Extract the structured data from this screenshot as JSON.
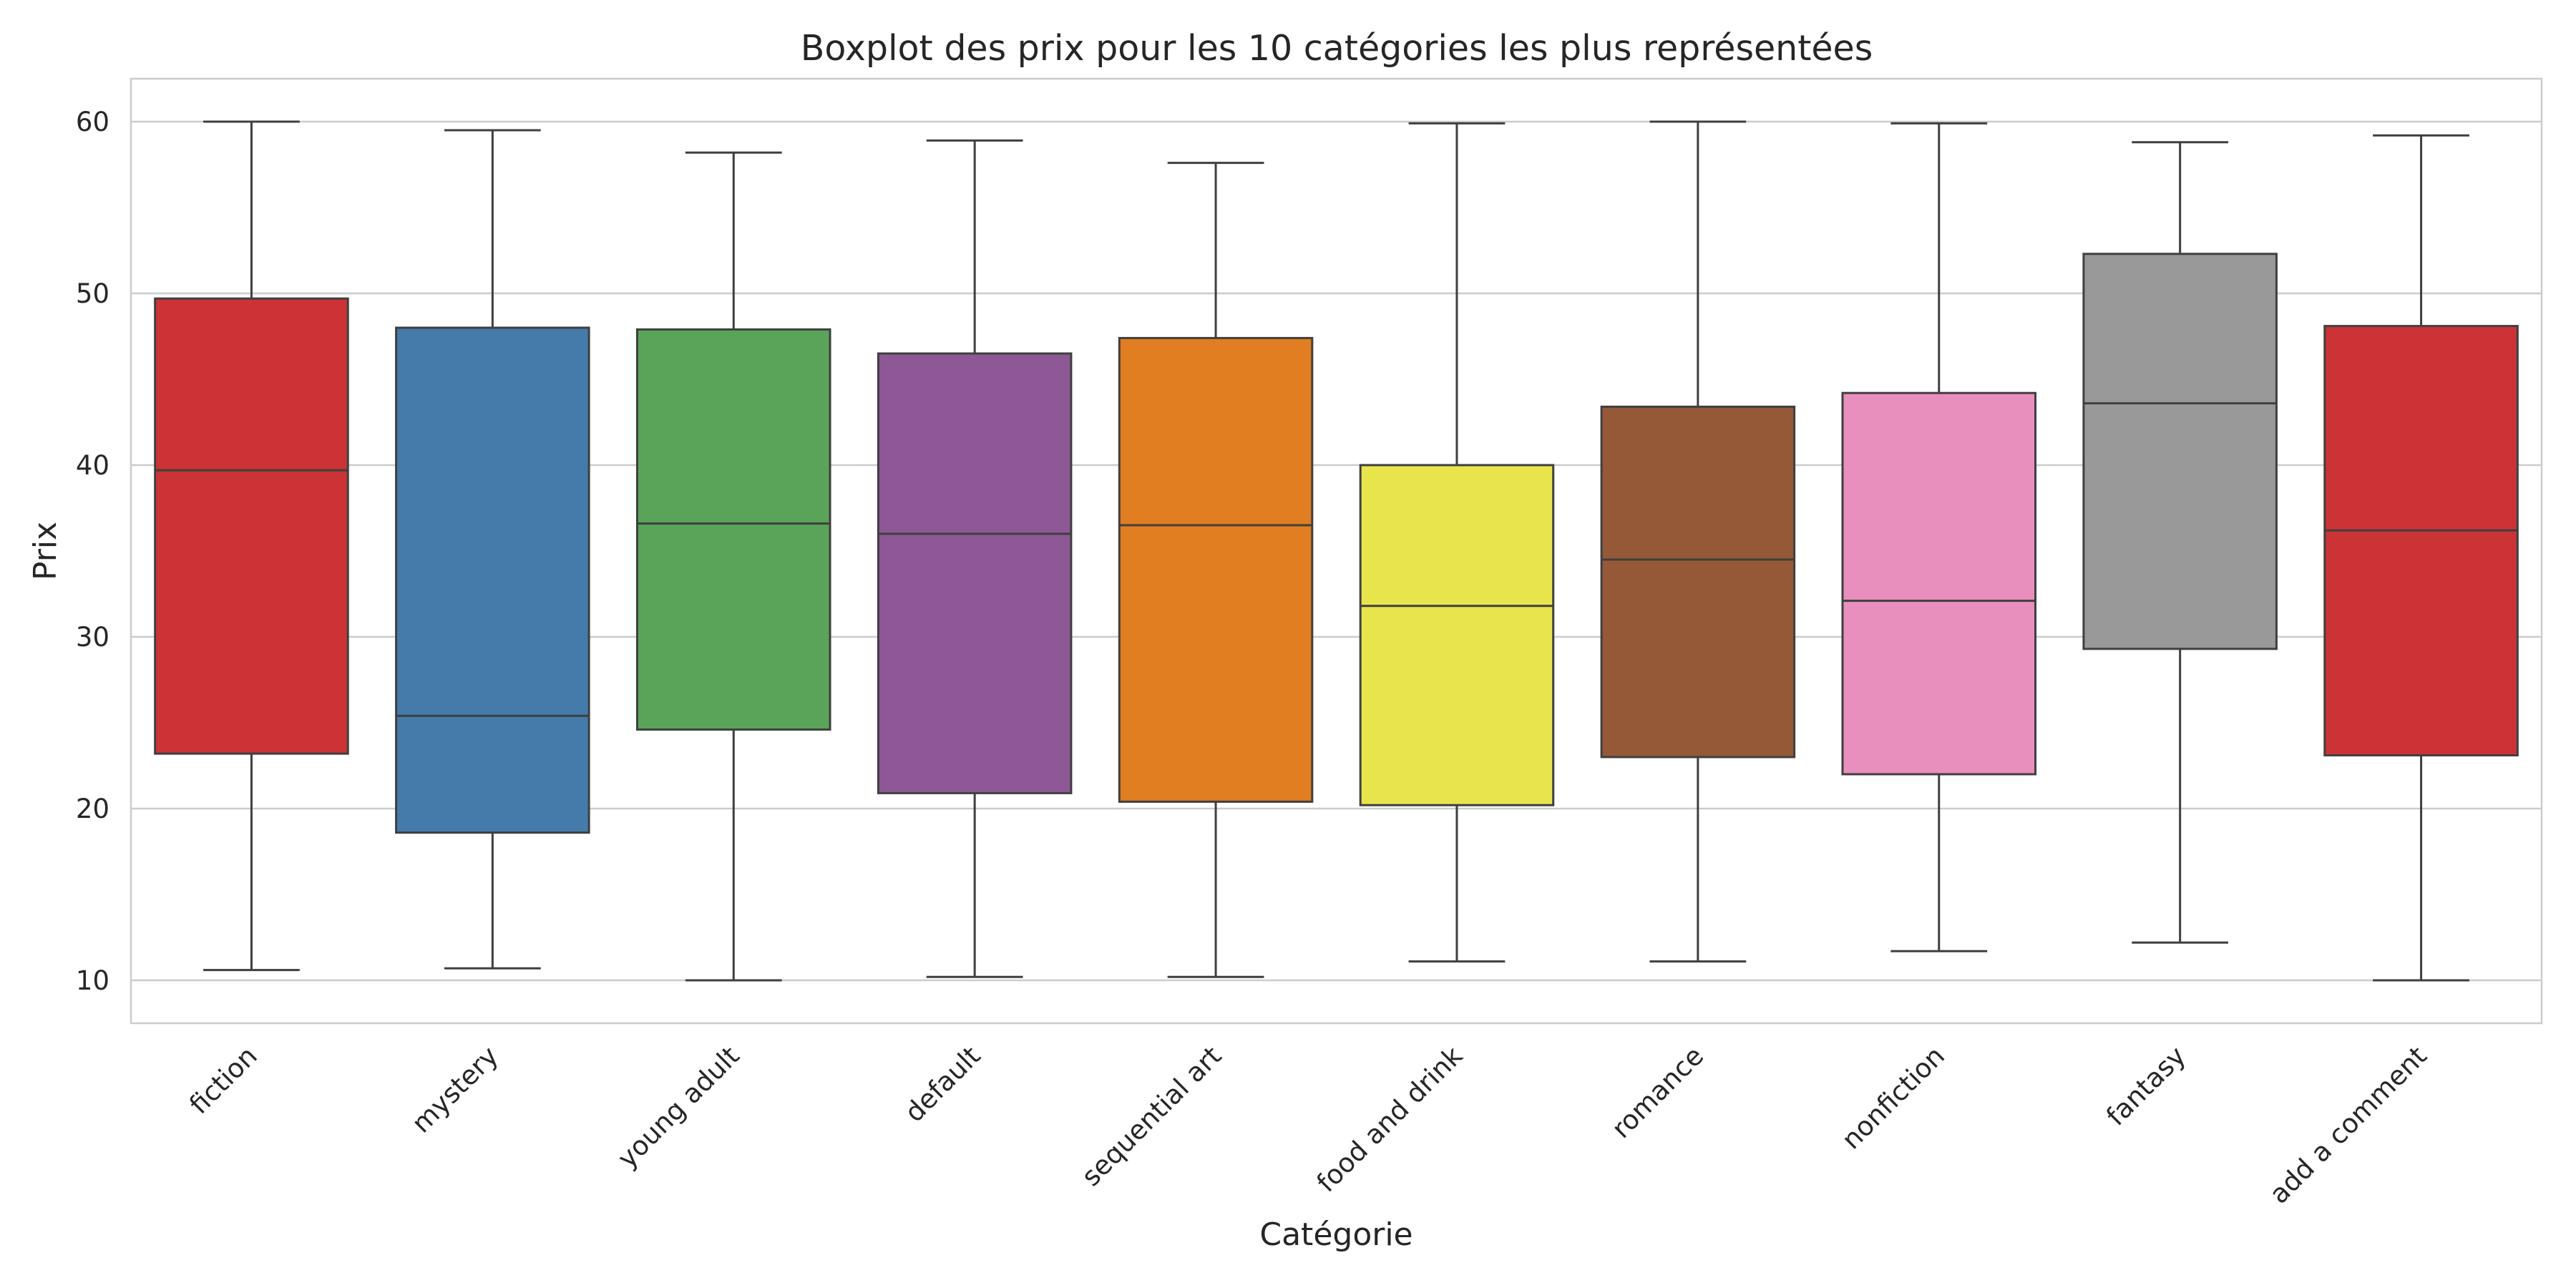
{
  "chart_data": {
    "type": "box",
    "title": "Boxplot des prix pour les 10 catégories les plus représentées",
    "xlabel": "Catégorie",
    "ylabel": "Prix",
    "ylim": [
      7.5,
      62.5
    ],
    "yticks": [
      10,
      20,
      30,
      40,
      50,
      60
    ],
    "grid": "horizontal",
    "categories": [
      "fiction",
      "mystery",
      "young adult",
      "default",
      "sequential art",
      "food and drink",
      "romance",
      "nonfiction",
      "fantasy",
      "add a comment"
    ],
    "boxes": [
      {
        "whisker_low": 10.6,
        "q1": 23.2,
        "median": 39.7,
        "q3": 49.7,
        "whisker_high": 60.0,
        "color": "#CC3336"
      },
      {
        "whisker_low": 10.7,
        "q1": 18.6,
        "median": 25.4,
        "q3": 48.0,
        "whisker_high": 59.5,
        "color": "#447BAA"
      },
      {
        "whisker_low": 10.0,
        "q1": 24.6,
        "median": 36.6,
        "q3": 47.9,
        "whisker_high": 58.2,
        "color": "#5AA45A"
      },
      {
        "whisker_low": 10.2,
        "q1": 20.9,
        "median": 36.0,
        "q3": 46.5,
        "whisker_high": 58.9,
        "color": "#8E5896"
      },
      {
        "whisker_low": 10.2,
        "q1": 20.4,
        "median": 36.5,
        "q3": 47.4,
        "whisker_high": 57.6,
        "color": "#E07E21"
      },
      {
        "whisker_low": 11.1,
        "q1": 20.2,
        "median": 31.8,
        "q3": 40.0,
        "whisker_high": 59.9,
        "color": "#E8E54C"
      },
      {
        "whisker_low": 11.1,
        "q1": 23.0,
        "median": 34.5,
        "q3": 43.4,
        "whisker_high": 60.0,
        "color": "#955938"
      },
      {
        "whisker_low": 11.7,
        "q1": 22.0,
        "median": 32.1,
        "q3": 44.2,
        "whisker_high": 59.9,
        "color": "#E98FBE"
      },
      {
        "whisker_low": 12.2,
        "q1": 29.3,
        "median": 43.6,
        "q3": 52.3,
        "whisker_high": 58.8,
        "color": "#999999"
      },
      {
        "whisker_low": 10.0,
        "q1": 23.1,
        "median": 36.2,
        "q3": 48.1,
        "whisker_high": 59.2,
        "color": "#CC3336"
      }
    ]
  }
}
